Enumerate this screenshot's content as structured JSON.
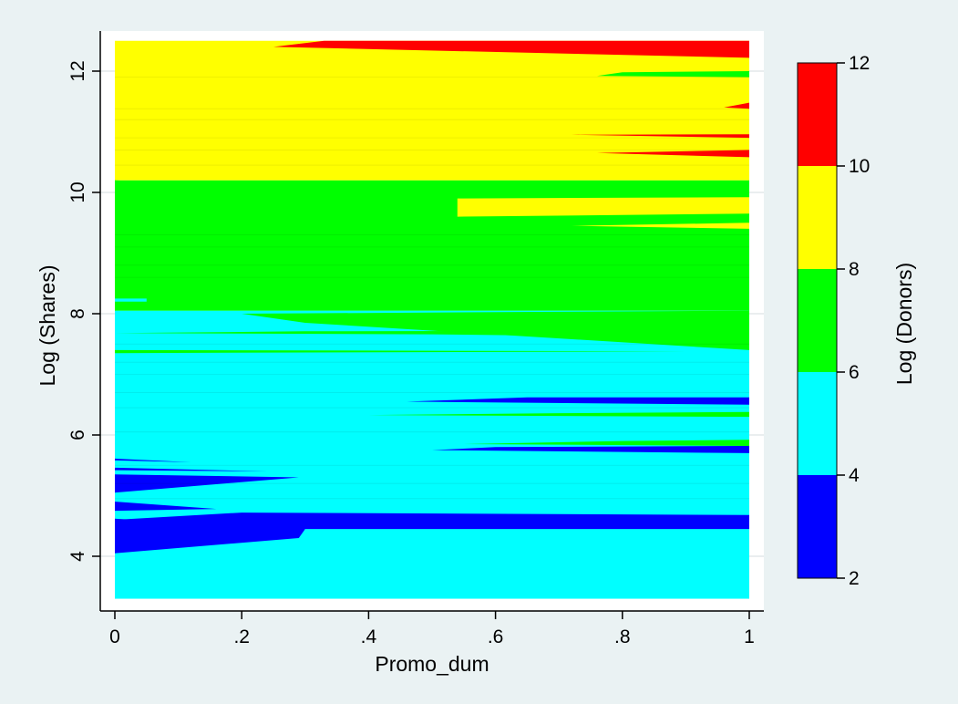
{
  "chart_data": {
    "type": "heatmap",
    "subtype": "contour",
    "title": "",
    "xlabel": "Promo_dum",
    "ylabel": "Log (Shares)",
    "xlim": [
      0,
      1
    ],
    "ylim": [
      3.3,
      12.5
    ],
    "x_ticks": [
      {
        "value": 0,
        "label": "0"
      },
      {
        "value": 0.2,
        "label": ".2"
      },
      {
        "value": 0.4,
        "label": ".4"
      },
      {
        "value": 0.6,
        "label": ".6"
      },
      {
        "value": 0.8,
        "label": ".8"
      },
      {
        "value": 1,
        "label": "1"
      }
    ],
    "y_ticks": [
      {
        "value": 4,
        "label": "4"
      },
      {
        "value": 6,
        "label": "6"
      },
      {
        "value": 8,
        "label": "8"
      },
      {
        "value": 10,
        "label": "10"
      },
      {
        "value": 12,
        "label": "12"
      }
    ],
    "colorbar": {
      "label": "Log (Donors)",
      "levels": [
        {
          "from": 2,
          "to": 4,
          "color": "#0000ff"
        },
        {
          "from": 4,
          "to": 6,
          "color": "#00ffff"
        },
        {
          "from": 6,
          "to": 8,
          "color": "#00ff00"
        },
        {
          "from": 8,
          "to": 10,
          "color": "#ffff00"
        },
        {
          "from": 10,
          "to": 12,
          "color": "#ff0000"
        }
      ],
      "tick_labels": [
        "2",
        "4",
        "6",
        "8",
        "10",
        "12"
      ]
    },
    "base_bands": [
      {
        "y_from": 3.3,
        "y_to": 8.05,
        "level": "4-6"
      },
      {
        "y_from": 8.05,
        "y_to": 10.2,
        "level": "6-8"
      },
      {
        "y_from": 10.2,
        "y_to": 12.5,
        "level": "8-10"
      }
    ],
    "regions": [
      {
        "level": "2-4",
        "points": [
          [
            0,
            4.05
          ],
          [
            0.29,
            4.3
          ],
          [
            0.3,
            4.45
          ],
          [
            0,
            4.62
          ]
        ]
      },
      {
        "level": "2-4",
        "points": [
          [
            0,
            4.45
          ],
          [
            1,
            4.45
          ],
          [
            1,
            4.68
          ],
          [
            0.2,
            4.72
          ],
          [
            0,
            4.6
          ]
        ]
      },
      {
        "level": "2-4",
        "points": [
          [
            0,
            4.75
          ],
          [
            0.16,
            4.78
          ],
          [
            0,
            4.9
          ]
        ]
      },
      {
        "level": "2-4",
        "points": [
          [
            0,
            5.05
          ],
          [
            0.29,
            5.3
          ],
          [
            0,
            5.35
          ]
        ]
      },
      {
        "level": "2-4",
        "points": [
          [
            0,
            5.42
          ],
          [
            0.24,
            5.4
          ],
          [
            0,
            5.46
          ]
        ]
      },
      {
        "level": "2-4",
        "points": [
          [
            0,
            5.58
          ],
          [
            0.12,
            5.55
          ],
          [
            0,
            5.61
          ]
        ]
      },
      {
        "level": "2-4",
        "points": [
          [
            0.5,
            5.75
          ],
          [
            1,
            5.7
          ],
          [
            1,
            5.82
          ],
          [
            0.6,
            5.8
          ]
        ]
      },
      {
        "level": "2-4",
        "points": [
          [
            0.46,
            6.55
          ],
          [
            1,
            6.5
          ],
          [
            1,
            6.62
          ],
          [
            0.65,
            6.62
          ]
        ]
      },
      {
        "level": "6-8",
        "points": [
          [
            0.4,
            6.33
          ],
          [
            1,
            6.3
          ],
          [
            1,
            6.38
          ],
          [
            0.7,
            6.36
          ]
        ]
      },
      {
        "level": "6-8",
        "points": [
          [
            0.55,
            5.85
          ],
          [
            1,
            5.82
          ],
          [
            1,
            5.92
          ],
          [
            0.8,
            5.9
          ]
        ]
      },
      {
        "level": "6-8",
        "points": [
          [
            0,
            7.68
          ],
          [
            0.5,
            7.66
          ],
          [
            1,
            7.6
          ],
          [
            1,
            7.72
          ],
          [
            0.3,
            7.71
          ]
        ]
      },
      {
        "level": "6-8",
        "points": [
          [
            0.3,
            7.85
          ],
          [
            1,
            7.4
          ],
          [
            1,
            8.05
          ],
          [
            0.2,
            8.0
          ]
        ]
      },
      {
        "level": "6-8",
        "points": [
          [
            0,
            7.35
          ],
          [
            0.9,
            7.38
          ],
          [
            0,
            7.4
          ]
        ]
      },
      {
        "level": "4-6",
        "points": [
          [
            0,
            8.25
          ],
          [
            0.05,
            8.25
          ],
          [
            0.05,
            8.2
          ],
          [
            0,
            8.2
          ]
        ]
      },
      {
        "level": "8-10",
        "points": [
          [
            0.54,
            9.6
          ],
          [
            1,
            9.65
          ],
          [
            1,
            9.92
          ],
          [
            0.54,
            9.9
          ]
        ]
      },
      {
        "level": "8-10",
        "points": [
          [
            0.72,
            9.45
          ],
          [
            1,
            9.4
          ],
          [
            1,
            9.5
          ]
        ]
      },
      {
        "level": "6-8",
        "points": [
          [
            0,
            10.2
          ],
          [
            0.14,
            10.1
          ],
          [
            0.05,
            10.0
          ],
          [
            0,
            10.02
          ]
        ]
      },
      {
        "level": "6-8",
        "points": [
          [
            0.76,
            11.92
          ],
          [
            1,
            11.9
          ],
          [
            1,
            12.0
          ],
          [
            0.8,
            11.98
          ]
        ]
      },
      {
        "level": "10-12",
        "points": [
          [
            0.33,
            12.5
          ],
          [
            1,
            12.5
          ],
          [
            1,
            12.22
          ],
          [
            0.25,
            12.4
          ]
        ]
      },
      {
        "level": "10-12",
        "points": [
          [
            0.96,
            11.4
          ],
          [
            1,
            11.38
          ],
          [
            1,
            11.48
          ]
        ]
      },
      {
        "level": "10-12",
        "points": [
          [
            0.72,
            10.95
          ],
          [
            1,
            10.9
          ],
          [
            1,
            10.96
          ]
        ]
      },
      {
        "level": "10-12",
        "points": [
          [
            0.76,
            10.65
          ],
          [
            1,
            10.58
          ],
          [
            1,
            10.7
          ]
        ]
      }
    ],
    "grid": true,
    "legend": "right"
  }
}
